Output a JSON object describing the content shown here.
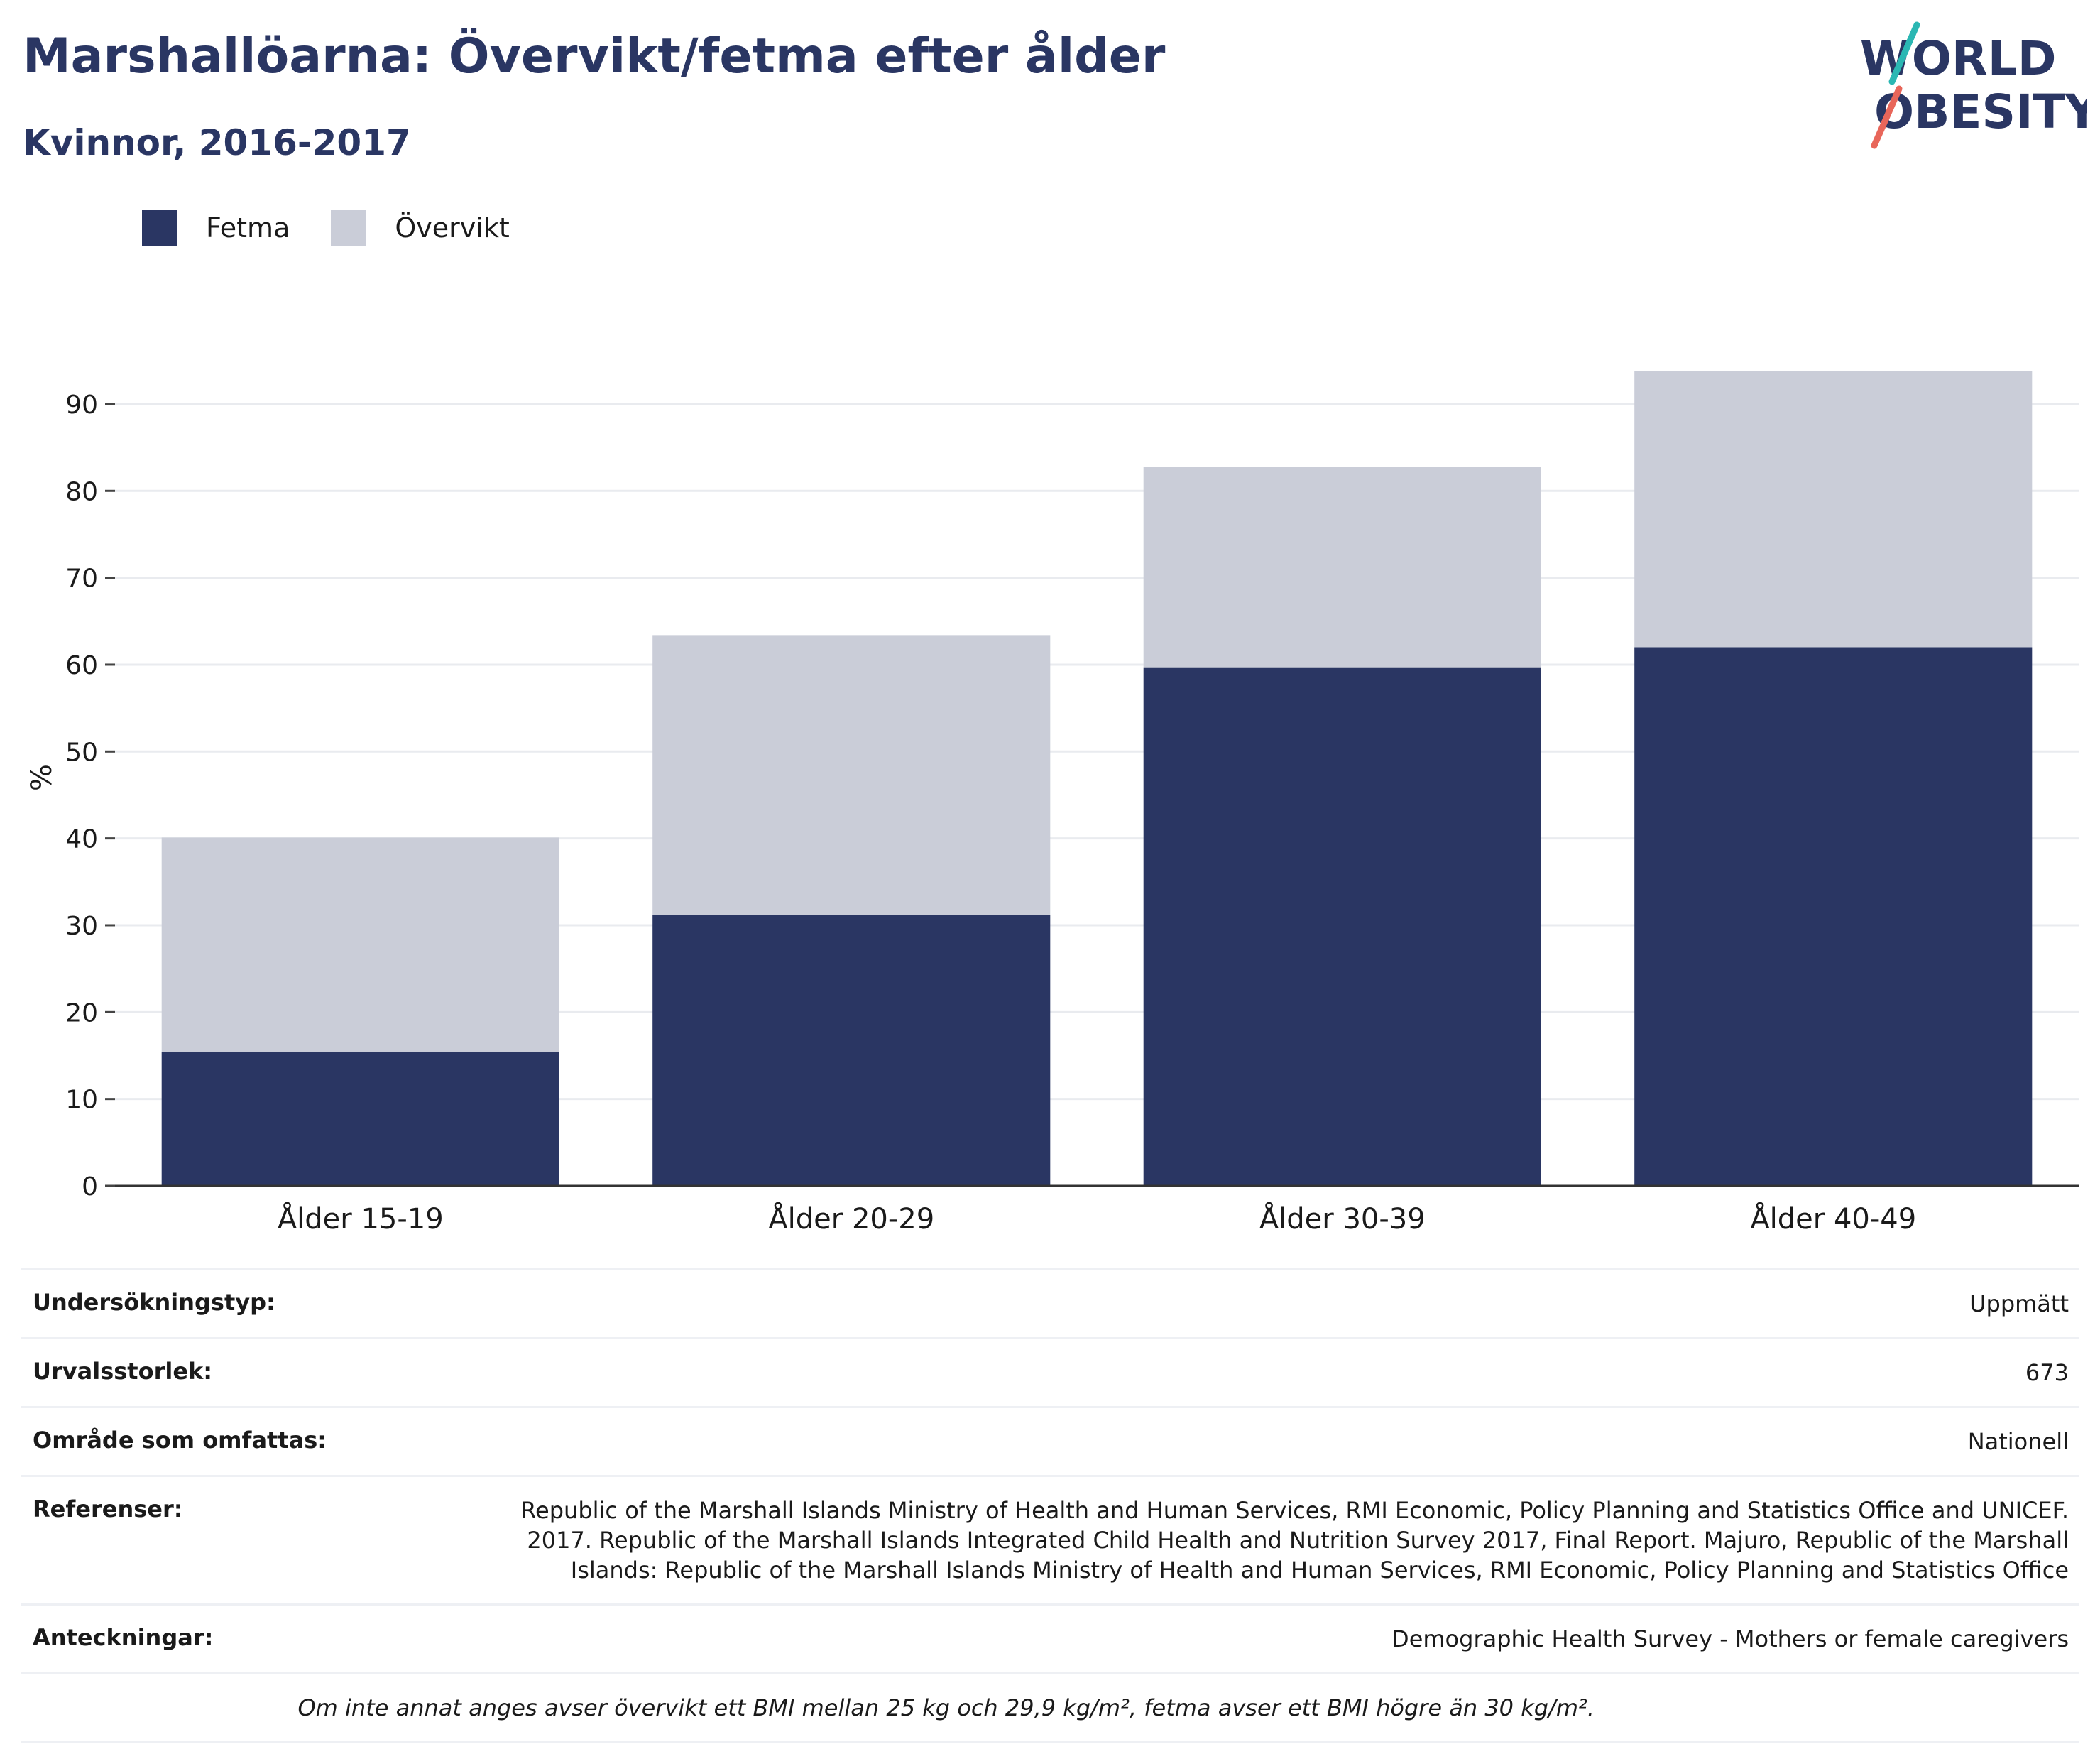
{
  "header": {
    "title": "Marshallöarna: Övervikt/fetma efter ålder",
    "subtitle": "Kvinnor, 2016-2017",
    "logo_text_line1": "WORLD",
    "logo_text_line2": "OBESITY"
  },
  "colors": {
    "fetma": "#2a3663",
    "overvikt": "#cacdd8",
    "accent_teal": "#2bb7b3",
    "accent_red": "#e8665a"
  },
  "chart_data": {
    "type": "bar",
    "stacked": true,
    "categories": [
      "Ålder 15-19",
      "Ålder 20-29",
      "Ålder 30-39",
      "Ålder 40-49"
    ],
    "series": [
      {
        "name": "Fetma",
        "values": [
          15.4,
          31.2,
          59.7,
          62.0
        ]
      },
      {
        "name": "Övervikt",
        "values": [
          24.7,
          32.2,
          23.1,
          31.8
        ]
      }
    ],
    "ylabel": "%",
    "ylim": [
      0,
      94
    ],
    "yticks": [
      0,
      10,
      20,
      30,
      40,
      50,
      60,
      70,
      80,
      90
    ],
    "grid": true,
    "legend": "top-left"
  },
  "info": [
    {
      "label": "Undersökningstyp:",
      "value": "Uppmätt"
    },
    {
      "label": "Urvalsstorlek:",
      "value": "673"
    },
    {
      "label": "Område som omfattas:",
      "value": "Nationell"
    },
    {
      "label": "Referenser:",
      "value": "Republic of the Marshall Islands Ministry of Health and Human Services, RMI Economic, Policy Planning and Statistics Office and UNICEF. 2017. Republic of the Marshall Islands Integrated Child Health and Nutrition Survey 2017, Final Report. Majuro, Republic of the Marshall Islands: Republic of the Marshall Islands Ministry of Health and Human Services, RMI Economic, Policy Planning and Statistics Office"
    },
    {
      "label": "Anteckningar:",
      "value": "Demographic Health Survey - Mothers or female caregivers"
    }
  ],
  "footnote": "Om inte annat anges avser övervikt ett BMI mellan 25 kg och 29,9 kg/m², fetma avser ett BMI högre än 30 kg/m²."
}
